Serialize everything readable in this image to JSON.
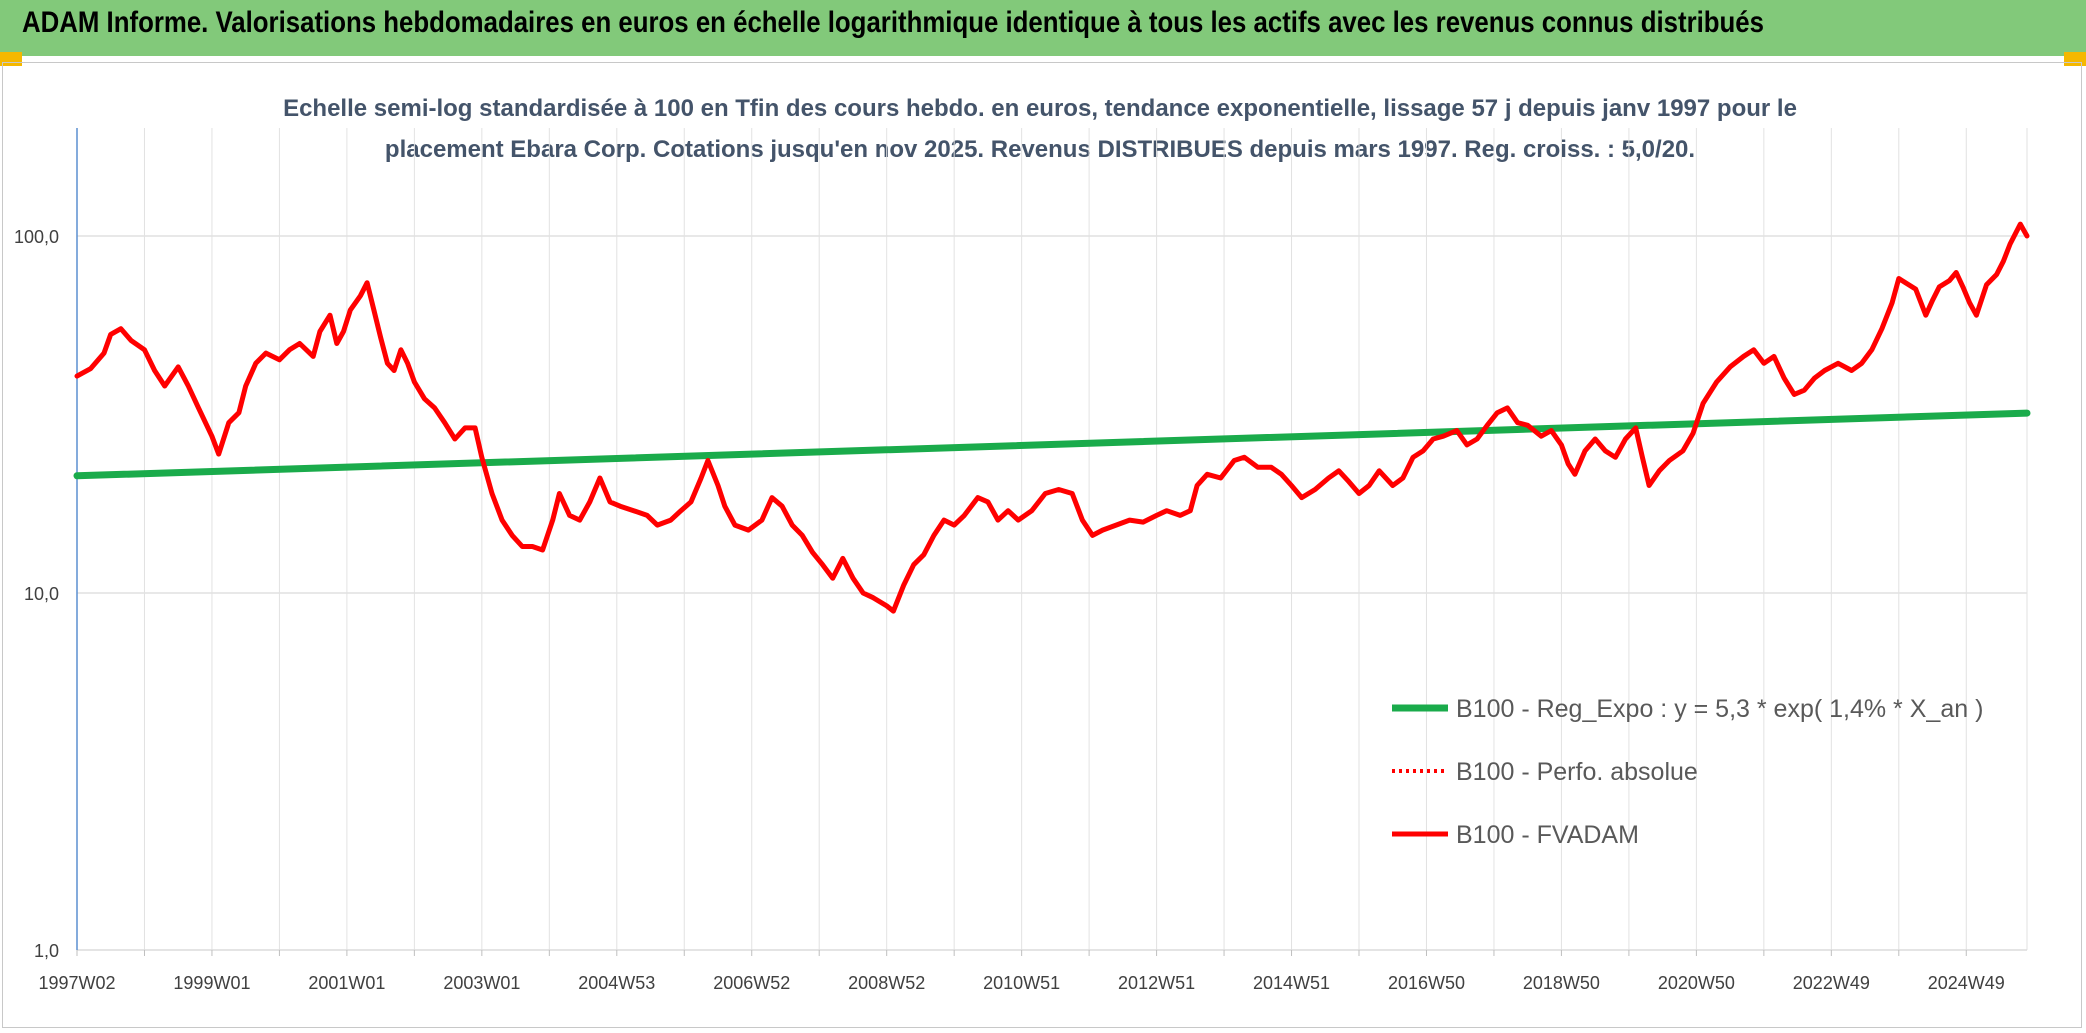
{
  "header": {
    "title": "ADAM Informe. Valorisations hebdomadaires en euros en échelle logarithmique identique à tous les actifs avec les revenus connus distribués"
  },
  "chart_data": {
    "type": "line",
    "title_lines": [
      "Echelle semi-log standardisée à 100 en Tfin des cours hebdo. en euros, tendance exponentielle, lissage 57 j depuis janv 1997 pour le",
      "placement Ebara Corp. Cotations jusqu'en nov 2025. Revenus DISTRIBUES depuis mars 1997. Reg. croiss. : 5,0/20."
    ],
    "y_scale": "log",
    "ylim": [
      1,
      100
    ],
    "y_ticks": [
      {
        "value": 1,
        "label": "1,0"
      },
      {
        "value": 10,
        "label": "10,0"
      },
      {
        "value": 100,
        "label": "100,0"
      }
    ],
    "x_range": [
      1997.0,
      2025.9
    ],
    "x_ticks": [
      {
        "x": 1997.0,
        "label": "1997W02"
      },
      {
        "x": 1999.0,
        "label": "1999W01"
      },
      {
        "x": 2001.0,
        "label": "2001W01"
      },
      {
        "x": 2003.0,
        "label": "2003W01"
      },
      {
        "x": 2005.0,
        "label": "2004W53"
      },
      {
        "x": 2007.0,
        "label": "2006W52"
      },
      {
        "x": 2009.0,
        "label": "2008W52"
      },
      {
        "x": 2011.0,
        "label": "2010W51"
      },
      {
        "x": 2013.0,
        "label": "2012W51"
      },
      {
        "x": 2015.0,
        "label": "2014W51"
      },
      {
        "x": 2017.0,
        "label": "2016W50"
      },
      {
        "x": 2019.0,
        "label": "2018W50"
      },
      {
        "x": 2021.0,
        "label": "2020W50"
      },
      {
        "x": 2023.0,
        "label": "2022W49"
      },
      {
        "x": 2025.0,
        "label": "2024W49"
      }
    ],
    "legend_position": "right",
    "series": [
      {
        "name": "B100 - Reg_Expo : y = 5,3 * exp( 1,4% *  X_an )",
        "color": "#1aab4b",
        "style": "solid",
        "points": [
          [
            1997.0,
            21.3
          ],
          [
            2025.9,
            31.9
          ]
        ]
      },
      {
        "name": "B100 - Perfo. absolue",
        "color": "#ff0000",
        "style": "dotted",
        "points": []
      },
      {
        "name": "B100 - FVADAM",
        "color": "#ff0000",
        "style": "solid",
        "points": [
          [
            1997.0,
            40.5
          ],
          [
            1997.2,
            42.5
          ],
          [
            1997.4,
            47
          ],
          [
            1997.5,
            53
          ],
          [
            1997.65,
            55
          ],
          [
            1997.8,
            51
          ],
          [
            1998.0,
            48
          ],
          [
            1998.15,
            42
          ],
          [
            1998.3,
            38
          ],
          [
            1998.5,
            43
          ],
          [
            1998.65,
            38
          ],
          [
            1998.8,
            33
          ],
          [
            1999.0,
            27.5
          ],
          [
            1999.1,
            24.5
          ],
          [
            1999.25,
            30
          ],
          [
            1999.4,
            32
          ],
          [
            1999.5,
            38
          ],
          [
            1999.65,
            44
          ],
          [
            1999.8,
            47
          ],
          [
            2000.0,
            45
          ],
          [
            2000.15,
            48
          ],
          [
            2000.3,
            50
          ],
          [
            2000.5,
            46
          ],
          [
            2000.6,
            54
          ],
          [
            2000.75,
            60
          ],
          [
            2000.85,
            50
          ],
          [
            2000.95,
            54
          ],
          [
            2001.05,
            62
          ],
          [
            2001.2,
            68
          ],
          [
            2001.3,
            74
          ],
          [
            2001.4,
            62
          ],
          [
            2001.5,
            52
          ],
          [
            2001.6,
            44
          ],
          [
            2001.7,
            42
          ],
          [
            2001.8,
            48
          ],
          [
            2001.9,
            44
          ],
          [
            2002.0,
            39
          ],
          [
            2002.15,
            35
          ],
          [
            2002.3,
            33
          ],
          [
            2002.45,
            30
          ],
          [
            2002.6,
            27
          ],
          [
            2002.75,
            29
          ],
          [
            2002.9,
            29
          ],
          [
            2003.0,
            24
          ],
          [
            2003.15,
            19
          ],
          [
            2003.3,
            16
          ],
          [
            2003.45,
            14.5
          ],
          [
            2003.6,
            13.5
          ],
          [
            2003.75,
            13.5
          ],
          [
            2003.9,
            13.2
          ],
          [
            2004.05,
            16
          ],
          [
            2004.15,
            19
          ],
          [
            2004.3,
            16.5
          ],
          [
            2004.45,
            16
          ],
          [
            2004.6,
            18
          ],
          [
            2004.75,
            21
          ],
          [
            2004.9,
            18
          ],
          [
            2005.05,
            17.5
          ],
          [
            2005.25,
            17
          ],
          [
            2005.45,
            16.5
          ],
          [
            2005.6,
            15.5
          ],
          [
            2005.8,
            16
          ],
          [
            2005.95,
            17
          ],
          [
            2006.1,
            18
          ],
          [
            2006.25,
            21
          ],
          [
            2006.35,
            23.5
          ],
          [
            2006.5,
            20
          ],
          [
            2006.6,
            17.5
          ],
          [
            2006.75,
            15.5
          ],
          [
            2006.95,
            15
          ],
          [
            2007.15,
            16
          ],
          [
            2007.3,
            18.5
          ],
          [
            2007.45,
            17.5
          ],
          [
            2007.6,
            15.5
          ],
          [
            2007.75,
            14.5
          ],
          [
            2007.9,
            13
          ],
          [
            2008.05,
            12
          ],
          [
            2008.2,
            11
          ],
          [
            2008.35,
            12.5
          ],
          [
            2008.5,
            11
          ],
          [
            2008.65,
            10
          ],
          [
            2008.8,
            9.7
          ],
          [
            2009.0,
            9.2
          ],
          [
            2009.1,
            8.9
          ],
          [
            2009.25,
            10.5
          ],
          [
            2009.4,
            12
          ],
          [
            2009.55,
            12.8
          ],
          [
            2009.7,
            14.5
          ],
          [
            2009.85,
            16
          ],
          [
            2010.0,
            15.5
          ],
          [
            2010.15,
            16.5
          ],
          [
            2010.35,
            18.5
          ],
          [
            2010.5,
            18
          ],
          [
            2010.65,
            16
          ],
          [
            2010.8,
            17
          ],
          [
            2010.95,
            16
          ],
          [
            2011.15,
            17
          ],
          [
            2011.35,
            19
          ],
          [
            2011.55,
            19.5
          ],
          [
            2011.75,
            19
          ],
          [
            2011.9,
            16
          ],
          [
            2012.05,
            14.5
          ],
          [
            2012.2,
            15
          ],
          [
            2012.4,
            15.5
          ],
          [
            2012.6,
            16
          ],
          [
            2012.8,
            15.8
          ],
          [
            2013.0,
            16.5
          ],
          [
            2013.15,
            17
          ],
          [
            2013.35,
            16.5
          ],
          [
            2013.5,
            17
          ],
          [
            2013.6,
            20
          ],
          [
            2013.75,
            21.5
          ],
          [
            2013.95,
            21
          ],
          [
            2014.15,
            23.5
          ],
          [
            2014.3,
            24
          ],
          [
            2014.5,
            22.5
          ],
          [
            2014.7,
            22.5
          ],
          [
            2014.85,
            21.5
          ],
          [
            2015.0,
            20
          ],
          [
            2015.15,
            18.5
          ],
          [
            2015.35,
            19.5
          ],
          [
            2015.55,
            21
          ],
          [
            2015.7,
            22
          ],
          [
            2015.85,
            20.5
          ],
          [
            2016.0,
            19
          ],
          [
            2016.15,
            20
          ],
          [
            2016.3,
            22
          ],
          [
            2016.5,
            20
          ],
          [
            2016.65,
            21
          ],
          [
            2016.8,
            24
          ],
          [
            2016.95,
            25
          ],
          [
            2017.1,
            27
          ],
          [
            2017.25,
            27.5
          ],
          [
            2017.45,
            28.5
          ],
          [
            2017.6,
            26
          ],
          [
            2017.75,
            27
          ],
          [
            2017.9,
            29.5
          ],
          [
            2018.05,
            32
          ],
          [
            2018.2,
            33
          ],
          [
            2018.35,
            30
          ],
          [
            2018.5,
            29.5
          ],
          [
            2018.7,
            27.5
          ],
          [
            2018.85,
            28.5
          ],
          [
            2019.0,
            26
          ],
          [
            2019.1,
            23
          ],
          [
            2019.2,
            21.5
          ],
          [
            2019.35,
            25
          ],
          [
            2019.5,
            27
          ],
          [
            2019.65,
            25
          ],
          [
            2019.8,
            24
          ],
          [
            2019.95,
            27
          ],
          [
            2020.1,
            29
          ],
          [
            2020.2,
            24
          ],
          [
            2020.3,
            20
          ],
          [
            2020.45,
            22
          ],
          [
            2020.6,
            23.5
          ],
          [
            2020.8,
            25
          ],
          [
            2020.95,
            28
          ],
          [
            2021.1,
            34
          ],
          [
            2021.3,
            39
          ],
          [
            2021.5,
            43
          ],
          [
            2021.7,
            46
          ],
          [
            2021.85,
            48
          ],
          [
            2022.0,
            44
          ],
          [
            2022.15,
            46
          ],
          [
            2022.3,
            40
          ],
          [
            2022.45,
            36
          ],
          [
            2022.6,
            37
          ],
          [
            2022.75,
            40
          ],
          [
            2022.9,
            42
          ],
          [
            2023.1,
            44
          ],
          [
            2023.3,
            42
          ],
          [
            2023.45,
            44
          ],
          [
            2023.6,
            48
          ],
          [
            2023.75,
            55
          ],
          [
            2023.9,
            65
          ],
          [
            2024.0,
            76
          ],
          [
            2024.1,
            74
          ],
          [
            2024.25,
            71
          ],
          [
            2024.4,
            60
          ],
          [
            2024.5,
            66
          ],
          [
            2024.6,
            72
          ],
          [
            2024.75,
            75
          ],
          [
            2024.85,
            79
          ],
          [
            2024.95,
            72
          ],
          [
            2025.05,
            65
          ],
          [
            2025.15,
            60
          ],
          [
            2025.3,
            73
          ],
          [
            2025.45,
            78
          ],
          [
            2025.55,
            85
          ],
          [
            2025.65,
            95
          ],
          [
            2025.8,
            108
          ],
          [
            2025.9,
            100
          ]
        ]
      }
    ]
  }
}
